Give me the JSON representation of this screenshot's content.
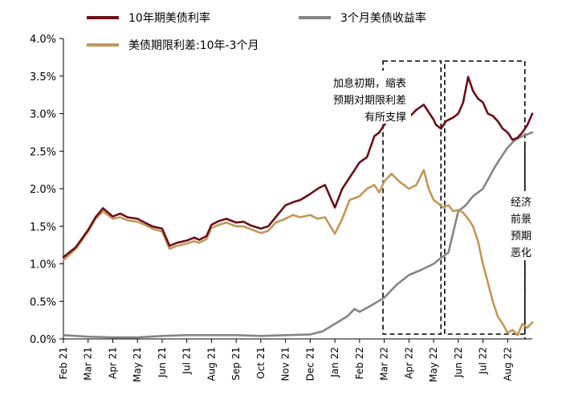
{
  "chart_data": {
    "type": "line",
    "title": "",
    "xlabel": "",
    "ylabel": "",
    "ylim": [
      0,
      4
    ],
    "y_ticks": [
      "4.0%",
      "3.5%",
      "3.0%",
      "2.5%",
      "2.0%",
      "1.5%",
      "1.0%",
      "0.5%",
      "0.0%"
    ],
    "x_ticks": [
      "Feb 21",
      "Mar 21",
      "Apr 21",
      "May 21",
      "Jun 21",
      "Jul 21",
      "Aug 21",
      "Sep 21",
      "Oct 21",
      "Nov 21",
      "Dec 21",
      "Jan 22",
      "Feb 22",
      "Mar 22",
      "Apr 22",
      "May 22",
      "Jun 22",
      "Jul 22",
      "Aug 22"
    ],
    "legend_position": "top",
    "series": [
      {
        "name": "10年期美债利率",
        "color": "#6b0f16",
        "x": [
          0,
          0.5,
          1,
          1.3,
          1.6,
          2,
          2.3,
          2.6,
          3,
          3.3,
          3.6,
          4,
          4.3,
          4.6,
          5,
          5.3,
          5.5,
          5.8,
          6,
          6.3,
          6.6,
          7,
          7.3,
          7.6,
          8,
          8.3,
          8.6,
          9,
          9.3,
          9.6,
          10,
          10.3,
          10.6,
          11,
          11.3,
          11.6,
          12,
          12.3,
          12.6,
          12.8,
          13,
          13.3,
          13.6,
          14,
          14.3,
          14.6,
          14.8,
          15,
          15.1,
          15.3,
          15.5,
          15.8,
          16,
          16.2,
          16.4,
          16.6,
          16.8,
          17,
          17.2,
          17.4,
          17.6,
          17.8,
          18,
          18.2,
          18.4,
          18.6,
          18.8,
          19
        ],
        "values": [
          1.09,
          1.22,
          1.45,
          1.62,
          1.74,
          1.63,
          1.67,
          1.62,
          1.6,
          1.55,
          1.5,
          1.47,
          1.24,
          1.28,
          1.31,
          1.35,
          1.32,
          1.37,
          1.52,
          1.57,
          1.6,
          1.55,
          1.56,
          1.51,
          1.47,
          1.5,
          1.62,
          1.78,
          1.82,
          1.85,
          1.93,
          2.0,
          2.05,
          1.75,
          2.0,
          2.15,
          2.35,
          2.42,
          2.7,
          2.75,
          2.85,
          2.95,
          3.02,
          2.95,
          3.05,
          3.12,
          3.02,
          2.92,
          2.85,
          2.8,
          2.9,
          2.95,
          3.0,
          3.15,
          3.49,
          3.3,
          3.2,
          3.15,
          3.0,
          2.97,
          2.9,
          2.8,
          2.75,
          2.65,
          2.68,
          2.75,
          2.85,
          3.0
        ]
      },
      {
        "name": "3个月美债收益率",
        "color": "#858585",
        "x": [
          0,
          1,
          2,
          3,
          4,
          5,
          6,
          7,
          8,
          9,
          10,
          10.5,
          11,
          11.5,
          11.8,
          12,
          12.5,
          13,
          13.5,
          14,
          14.5,
          15,
          15.3,
          15.6,
          16,
          16.3,
          16.6,
          17,
          17.3,
          17.5,
          17.8,
          18,
          18.3,
          18.6,
          19
        ],
        "values": [
          0.05,
          0.03,
          0.02,
          0.02,
          0.04,
          0.05,
          0.05,
          0.05,
          0.04,
          0.05,
          0.06,
          0.1,
          0.2,
          0.3,
          0.4,
          0.36,
          0.45,
          0.55,
          0.72,
          0.85,
          0.92,
          1.0,
          1.08,
          1.15,
          1.7,
          1.78,
          1.9,
          2.0,
          2.18,
          2.3,
          2.45,
          2.55,
          2.65,
          2.7,
          2.75
        ]
      },
      {
        "name": "美债期限利差:10年-3个月",
        "color": "#c39656",
        "x": [
          0,
          0.5,
          1,
          1.3,
          1.6,
          2,
          2.3,
          2.6,
          3,
          3.3,
          3.6,
          4,
          4.3,
          4.6,
          5,
          5.3,
          5.5,
          5.8,
          6,
          6.3,
          6.6,
          7,
          7.3,
          7.6,
          8,
          8.3,
          8.6,
          9,
          9.3,
          9.6,
          10,
          10.3,
          10.6,
          11,
          11.3,
          11.6,
          12,
          12.3,
          12.6,
          12.8,
          13,
          13.3,
          13.6,
          14,
          14.3,
          14.6,
          14.8,
          15,
          15.2,
          15.4,
          15.6,
          15.8,
          16,
          16.2,
          16.4,
          16.6,
          16.8,
          17,
          17.2,
          17.4,
          17.6,
          17.8,
          18,
          18.2,
          18.4,
          18.6,
          18.8,
          19
        ],
        "values": [
          1.05,
          1.2,
          1.43,
          1.6,
          1.7,
          1.6,
          1.62,
          1.58,
          1.56,
          1.52,
          1.47,
          1.43,
          1.2,
          1.24,
          1.27,
          1.3,
          1.28,
          1.33,
          1.48,
          1.52,
          1.55,
          1.5,
          1.5,
          1.46,
          1.41,
          1.44,
          1.55,
          1.6,
          1.65,
          1.62,
          1.65,
          1.6,
          1.62,
          1.4,
          1.6,
          1.85,
          1.9,
          2.0,
          2.05,
          1.95,
          2.1,
          2.2,
          2.1,
          2.0,
          2.05,
          2.25,
          2.0,
          1.85,
          1.8,
          1.75,
          1.78,
          1.7,
          1.72,
          1.68,
          1.6,
          1.5,
          1.3,
          1.0,
          0.75,
          0.5,
          0.3,
          0.2,
          0.08,
          0.12,
          0.05,
          0.2,
          0.15,
          0.22
        ]
      }
    ],
    "annotations": [
      {
        "lines": [
          "加息初期，缩表",
          "预期对期限利差",
          "有所支撑"
        ]
      },
      {
        "lines": [
          "经济",
          "前景",
          "预期",
          "恶化"
        ]
      }
    ],
    "highlight_ranges": [
      [
        12.95,
        15.3
      ],
      [
        15.45,
        18.7
      ]
    ],
    "vline": 18.7
  }
}
